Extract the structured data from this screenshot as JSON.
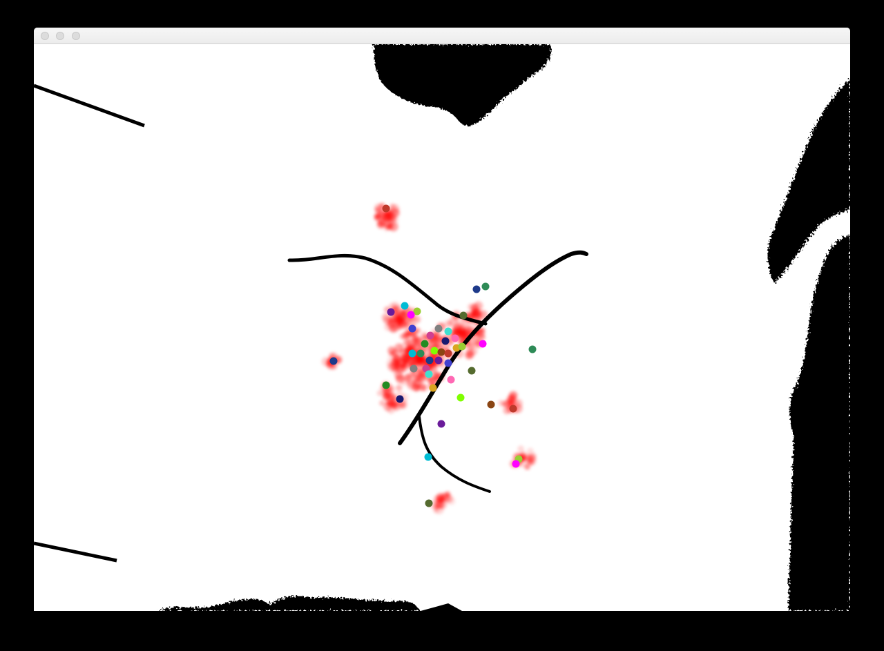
{
  "window": {
    "title": "",
    "buttons": [
      "close",
      "minimize",
      "zoom"
    ]
  },
  "canvas": {
    "mode": "threshold-webcam-with-particle-tracking",
    "background_color": "#ffffff",
    "silhouette_color": "#000000",
    "trail_color": "#ff0000",
    "stroke_color": "#000000"
  },
  "particle_colors": [
    "#c0392b",
    "#2e8b57",
    "#1e3a8a",
    "#6a1b9a",
    "#00bcd4",
    "#9acd32",
    "#ff00ff",
    "#556b2f",
    "#4040d0",
    "#d04090",
    "#808080",
    "#40e0d0",
    "#ff69b4",
    "#228b22",
    "#191970",
    "#daa520",
    "#7fff00",
    "#8b4513"
  ]
}
